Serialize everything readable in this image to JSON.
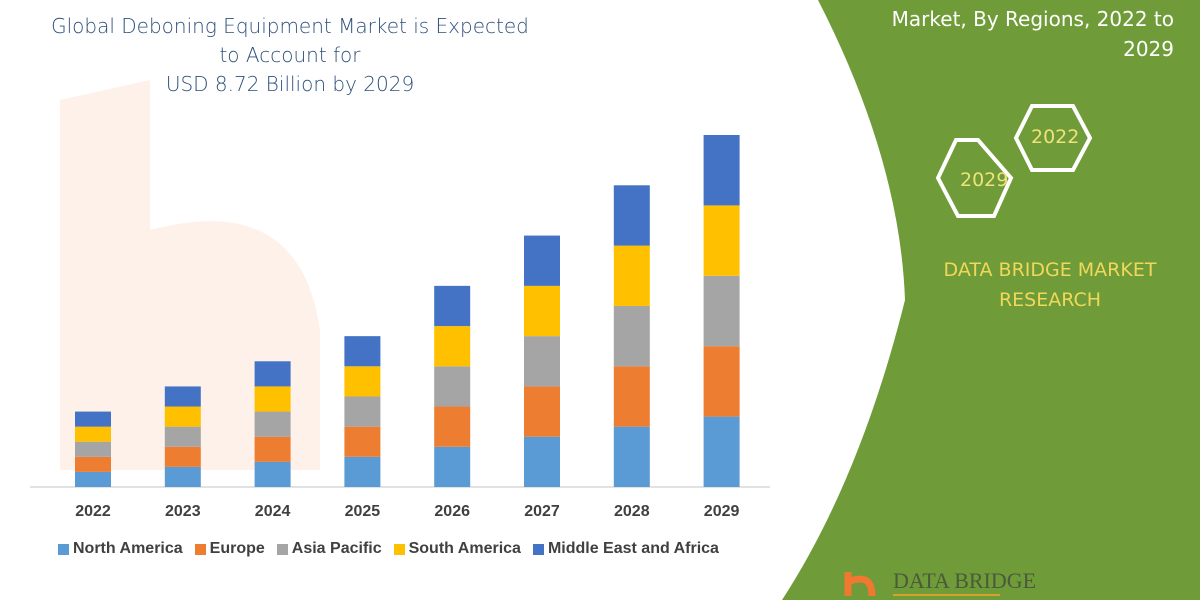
{
  "title": "Global Deboning Equipment Market is Expected to Account for USD 8.72 Billion by 2029",
  "title_lines": [
    "Global Deboning Equipment Market is Expected to Account for",
    "USD 8.72 Billion by 2029"
  ],
  "panel": {
    "title_lines": [
      "Market, By Regions, 2022 to",
      "2029"
    ],
    "hex_labels": [
      "2022",
      "2029"
    ],
    "brand_lines": [
      "DATA BRIDGE MARKET",
      "RESEARCH"
    ],
    "logo_text": "DATA BRIDGE",
    "colors": {
      "panel": "#6f9b38",
      "hex_text": "#f0e27a",
      "brand_text": "#f0d85a"
    }
  },
  "chart_data": {
    "type": "bar",
    "stacked": true,
    "categories": [
      "2022",
      "2023",
      "2024",
      "2025",
      "2026",
      "2027",
      "2028",
      "2029"
    ],
    "series": [
      {
        "name": "North America",
        "color": "#5b9bd5",
        "values": [
          15,
          20,
          25,
          30,
          40,
          50,
          60,
          70
        ]
      },
      {
        "name": "Europe",
        "color": "#ed7d31",
        "values": [
          15,
          20,
          25,
          30,
          40,
          50,
          60,
          70
        ]
      },
      {
        "name": "Asia Pacific",
        "color": "#a5a5a5",
        "values": [
          15,
          20,
          25,
          30,
          40,
          50,
          60,
          70
        ]
      },
      {
        "name": "South America",
        "color": "#ffc000",
        "values": [
          15,
          20,
          25,
          30,
          40,
          50,
          60,
          70
        ]
      },
      {
        "name": "Middle East and Africa",
        "color": "#4472c4",
        "values": [
          15,
          20,
          25,
          30,
          40,
          50,
          60,
          70
        ]
      }
    ],
    "ylim": [
      0,
      350
    ],
    "y_axis_shown": false,
    "grid": false,
    "legend": "bottom"
  }
}
